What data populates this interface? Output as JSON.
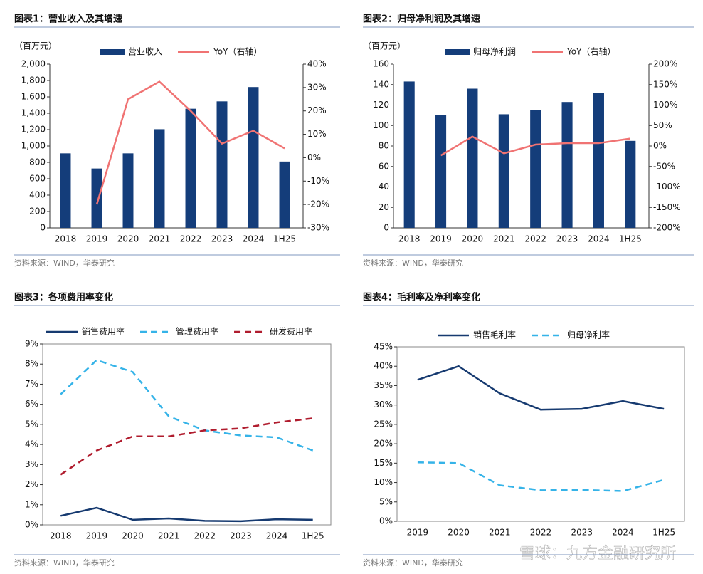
{
  "chart_data": [
    {
      "type": "bar",
      "title": "图表1：营业收入及其增速",
      "unit_label": "（百万元）",
      "source": "资料来源：WIND，华泰研究",
      "categories": [
        "2018",
        "2019",
        "2020",
        "2021",
        "2022",
        "2023",
        "2024",
        "1H25"
      ],
      "series": [
        {
          "name": "营业收入",
          "type": "bar",
          "color": "#143d7a",
          "values": [
            910,
            725,
            910,
            1205,
            1455,
            1545,
            1720,
            810
          ]
        },
        {
          "name": "YoY（右轴）",
          "type": "line",
          "axis": "y2",
          "color": "#f07373",
          "values": [
            null,
            -20,
            25,
            32.5,
            20,
            6,
            11.5,
            4
          ]
        }
      ],
      "ylim": [
        0,
        2000
      ],
      "yticks": [
        0,
        200,
        400,
        600,
        800,
        {
          "value": 1000,
          "label": "1,000"
        },
        {
          "value": 1200,
          "label": "1,200"
        },
        {
          "value": 1400,
          "label": "1,400"
        },
        {
          "value": 1600,
          "label": "1,600"
        },
        {
          "value": 1800,
          "label": "1,800"
        },
        {
          "value": 2000,
          "label": "2,000"
        }
      ],
      "y2lim": [
        -30,
        40
      ],
      "y2ticks": [
        {
          "value": -30,
          "label": "-30%"
        },
        {
          "value": -20,
          "label": "-20%"
        },
        {
          "value": -10,
          "label": "-10%"
        },
        {
          "value": 0,
          "label": "0%"
        },
        {
          "value": 10,
          "label": "10%"
        },
        {
          "value": 20,
          "label": "20%"
        },
        {
          "value": 30,
          "label": "30%"
        },
        {
          "value": 40,
          "label": "40%"
        }
      ],
      "grid": false
    },
    {
      "type": "bar",
      "title": "图表2：归母净利润及其增速",
      "unit_label": "（百万元）",
      "source": "资料来源：WIND，华泰研究",
      "categories": [
        "2018",
        "2019",
        "2020",
        "2021",
        "2022",
        "2023",
        "2024",
        "1H25"
      ],
      "series": [
        {
          "name": "归母净利润",
          "type": "bar",
          "color": "#143d7a",
          "values": [
            143,
            110,
            136,
            111,
            115,
            123,
            132,
            85
          ]
        },
        {
          "name": "YoY（右轴）",
          "type": "line",
          "axis": "y2",
          "color": "#f07373",
          "values": [
            null,
            -23,
            23,
            -18,
            3.5,
            7,
            7,
            18
          ]
        }
      ],
      "ylim": [
        0,
        160
      ],
      "yticks": [
        0,
        20,
        40,
        60,
        80,
        100,
        120,
        140,
        160
      ],
      "y2lim": [
        -200,
        200
      ],
      "y2ticks": [
        {
          "value": -200,
          "label": "-200%"
        },
        {
          "value": -150,
          "label": "-150%"
        },
        {
          "value": -100,
          "label": "-100%"
        },
        {
          "value": -50,
          "label": "-50%"
        },
        {
          "value": 0,
          "label": "0%"
        },
        {
          "value": 50,
          "label": "50%"
        },
        {
          "value": 100,
          "label": "100%"
        },
        {
          "value": 150,
          "label": "150%"
        },
        {
          "value": 200,
          "label": "200%"
        }
      ],
      "grid": false
    },
    {
      "type": "line",
      "title": "图表3：各项费用率变化",
      "source": "资料来源：WIND，华泰研究",
      "categories": [
        "2018",
        "2019",
        "2020",
        "2021",
        "2022",
        "2023",
        "2024",
        "1H25"
      ],
      "series": [
        {
          "name": "销售费用率",
          "color": "#163a70",
          "style": "solid",
          "values": [
            0.45,
            0.85,
            0.25,
            0.32,
            0.2,
            0.18,
            0.28,
            0.25
          ]
        },
        {
          "name": "管理费用率",
          "color": "#35b3e8",
          "style": "dashed",
          "values": [
            6.5,
            8.2,
            7.6,
            5.4,
            4.7,
            4.45,
            4.35,
            3.7
          ]
        },
        {
          "name": "研发费用率",
          "color": "#b01c2e",
          "style": "dashed",
          "values": [
            2.5,
            3.7,
            4.4,
            4.4,
            4.7,
            4.8,
            5.1,
            5.3
          ]
        }
      ],
      "ylim": [
        0,
        9
      ],
      "yticks": [
        {
          "value": 0,
          "label": "0%"
        },
        {
          "value": 1,
          "label": "1%"
        },
        {
          "value": 2,
          "label": "2%"
        },
        {
          "value": 3,
          "label": "3%"
        },
        {
          "value": 4,
          "label": "4%"
        },
        {
          "value": 5,
          "label": "5%"
        },
        {
          "value": 6,
          "label": "6%"
        },
        {
          "value": 7,
          "label": "7%"
        },
        {
          "value": 8,
          "label": "8%"
        },
        {
          "value": 9,
          "label": "9%"
        }
      ],
      "grid": false
    },
    {
      "type": "line",
      "title": "图表4：毛利率及净利率变化",
      "source": "资料来源：WIND，华泰研究",
      "categories": [
        "2019",
        "2020",
        "2021",
        "2022",
        "2023",
        "2024",
        "1H25"
      ],
      "series": [
        {
          "name": "销售毛利率",
          "color": "#163a70",
          "style": "solid",
          "values": [
            36.5,
            40,
            33,
            28.8,
            29,
            31,
            29
          ]
        },
        {
          "name": "归母净利率",
          "color": "#35b3e8",
          "style": "dashed",
          "values": [
            15.2,
            15,
            9.3,
            8,
            8.1,
            7.8,
            10.7
          ]
        }
      ],
      "ylim": [
        0,
        45
      ],
      "yticks": [
        {
          "value": 0,
          "label": "0%"
        },
        {
          "value": 5,
          "label": "5%"
        },
        {
          "value": 10,
          "label": "10%"
        },
        {
          "value": 15,
          "label": "15%"
        },
        {
          "value": 20,
          "label": "20%"
        },
        {
          "value": 25,
          "label": "25%"
        },
        {
          "value": 30,
          "label": "30%"
        },
        {
          "value": 35,
          "label": "35%"
        },
        {
          "value": 40,
          "label": "40%"
        },
        {
          "value": 45,
          "label": "45%"
        }
      ],
      "grid": false
    }
  ],
  "watermark": "雪球：九方金融研究所"
}
